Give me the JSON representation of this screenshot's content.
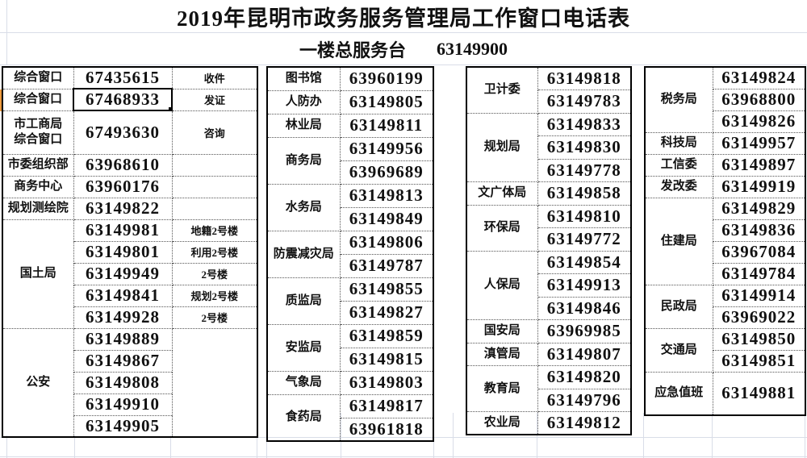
{
  "title": "2019年昆明市政务服务管理局工作窗口电话表",
  "subtitle": {
    "label": "一楼总服务台",
    "phone": "63149900"
  },
  "colors": {
    "selection_row_marker": "#ee9b3f",
    "table_border": "#000000",
    "gridline": "#d9dde8"
  },
  "selection": {
    "value": "67468933",
    "dept": "综合窗口",
    "note": "发证"
  },
  "groups": [
    {
      "name": "group-1",
      "depts": [
        {
          "dept": "综合窗口",
          "rows": [
            {
              "phone": "67435615",
              "note": "收件"
            }
          ]
        },
        {
          "dept": "综合窗口",
          "rows": [
            {
              "phone": "67468933",
              "note": "发证",
              "selected": true
            }
          ]
        },
        {
          "dept": "市工商局\n综合窗口",
          "tall": true,
          "rows": [
            {
              "phone": "67493630",
              "note": "咨询"
            }
          ]
        },
        {
          "dept": "市委组织部",
          "rows": [
            {
              "phone": "63968610",
              "note": ""
            }
          ]
        },
        {
          "dept": "商务中心",
          "rows": [
            {
              "phone": "63960176",
              "note": ""
            }
          ]
        },
        {
          "dept": "规划测绘院",
          "rows": [
            {
              "phone": "63149822",
              "note": ""
            }
          ]
        },
        {
          "dept": "国土局",
          "rows": [
            {
              "phone": "63149981",
              "note": "地籍2号楼"
            },
            {
              "phone": "63149801",
              "note": "利用2号楼"
            },
            {
              "phone": "63149949",
              "note": "2号楼"
            },
            {
              "phone": "63149841",
              "note": "规划2号楼"
            },
            {
              "phone": "63149928",
              "note": "2号楼"
            }
          ]
        },
        {
          "dept": "公安",
          "merge_note": true,
          "rows": [
            {
              "phone": "63149889"
            },
            {
              "phone": "63149867"
            },
            {
              "phone": "63149808"
            },
            {
              "phone": "63149910"
            },
            {
              "phone": "63149905"
            }
          ]
        }
      ]
    },
    {
      "name": "group-2",
      "depts": [
        {
          "dept": "图书馆",
          "rows": [
            {
              "phone": "63960199"
            }
          ]
        },
        {
          "dept": "人防办",
          "rows": [
            {
              "phone": "63149805"
            }
          ]
        },
        {
          "dept": "林业局",
          "rows": [
            {
              "phone": "63149811"
            }
          ]
        },
        {
          "dept": "商务局",
          "rows": [
            {
              "phone": "63149956"
            },
            {
              "phone": "63969689"
            }
          ]
        },
        {
          "dept": "水务局",
          "rows": [
            {
              "phone": "63149813"
            },
            {
              "phone": "63149849"
            }
          ]
        },
        {
          "dept": "防震减灾局",
          "rows": [
            {
              "phone": "63149806"
            },
            {
              "phone": "63149787"
            }
          ]
        },
        {
          "dept": "质监局",
          "rows": [
            {
              "phone": "63149855"
            },
            {
              "phone": "63149827"
            }
          ]
        },
        {
          "dept": "安监局",
          "rows": [
            {
              "phone": "63149859"
            },
            {
              "phone": "63149815"
            }
          ]
        },
        {
          "dept": "气象局",
          "rows": [
            {
              "phone": "63149803"
            }
          ]
        },
        {
          "dept": "食药局",
          "rows": [
            {
              "phone": "63149817"
            },
            {
              "phone": "63961818"
            }
          ]
        }
      ]
    },
    {
      "name": "group-3",
      "depts": [
        {
          "dept": "卫计委",
          "rows": [
            {
              "phone": "63149818"
            },
            {
              "phone": "63149783"
            }
          ]
        },
        {
          "dept": "规划局",
          "rows": [
            {
              "phone": "63149833"
            },
            {
              "phone": "63149830"
            },
            {
              "phone": "63149778"
            }
          ]
        },
        {
          "dept": "文广体局",
          "rows": [
            {
              "phone": "63149858"
            }
          ]
        },
        {
          "dept": "环保局",
          "rows": [
            {
              "phone": "63149810"
            },
            {
              "phone": "63149772"
            }
          ]
        },
        {
          "dept": "人保局",
          "rows": [
            {
              "phone": "63149854"
            },
            {
              "phone": "63149913"
            },
            {
              "phone": "63149846"
            }
          ]
        },
        {
          "dept": "国安局",
          "rows": [
            {
              "phone": "63969985"
            }
          ]
        },
        {
          "dept": "滇管局",
          "rows": [
            {
              "phone": "63149807"
            }
          ]
        },
        {
          "dept": "教育局",
          "rows": [
            {
              "phone": "63149820"
            },
            {
              "phone": "63149796"
            }
          ]
        },
        {
          "dept": "农业局",
          "rows": [
            {
              "phone": "63149812"
            }
          ]
        }
      ]
    },
    {
      "name": "group-4",
      "depts": [
        {
          "dept": "税务局",
          "rows": [
            {
              "phone": "63149824"
            },
            {
              "phone": "63968800"
            },
            {
              "phone": "63149826"
            }
          ]
        },
        {
          "dept": "科技局",
          "rows": [
            {
              "phone": "63149957"
            }
          ]
        },
        {
          "dept": "工信委",
          "rows": [
            {
              "phone": "63149897"
            }
          ]
        },
        {
          "dept": "发改委",
          "rows": [
            {
              "phone": "63149919"
            }
          ]
        },
        {
          "dept": "住建局",
          "rows": [
            {
              "phone": "63149829"
            },
            {
              "phone": "63149836"
            },
            {
              "phone": "63967084"
            },
            {
              "phone": "63149784"
            }
          ]
        },
        {
          "dept": "民政局",
          "rows": [
            {
              "phone": "63149914"
            },
            {
              "phone": "63969022"
            }
          ]
        },
        {
          "dept": "交通局",
          "rows": [
            {
              "phone": "63149850"
            },
            {
              "phone": "63149851"
            }
          ]
        },
        {
          "dept": "应急值班",
          "tall": true,
          "rows": [
            {
              "phone": "63149881"
            }
          ]
        }
      ]
    }
  ]
}
